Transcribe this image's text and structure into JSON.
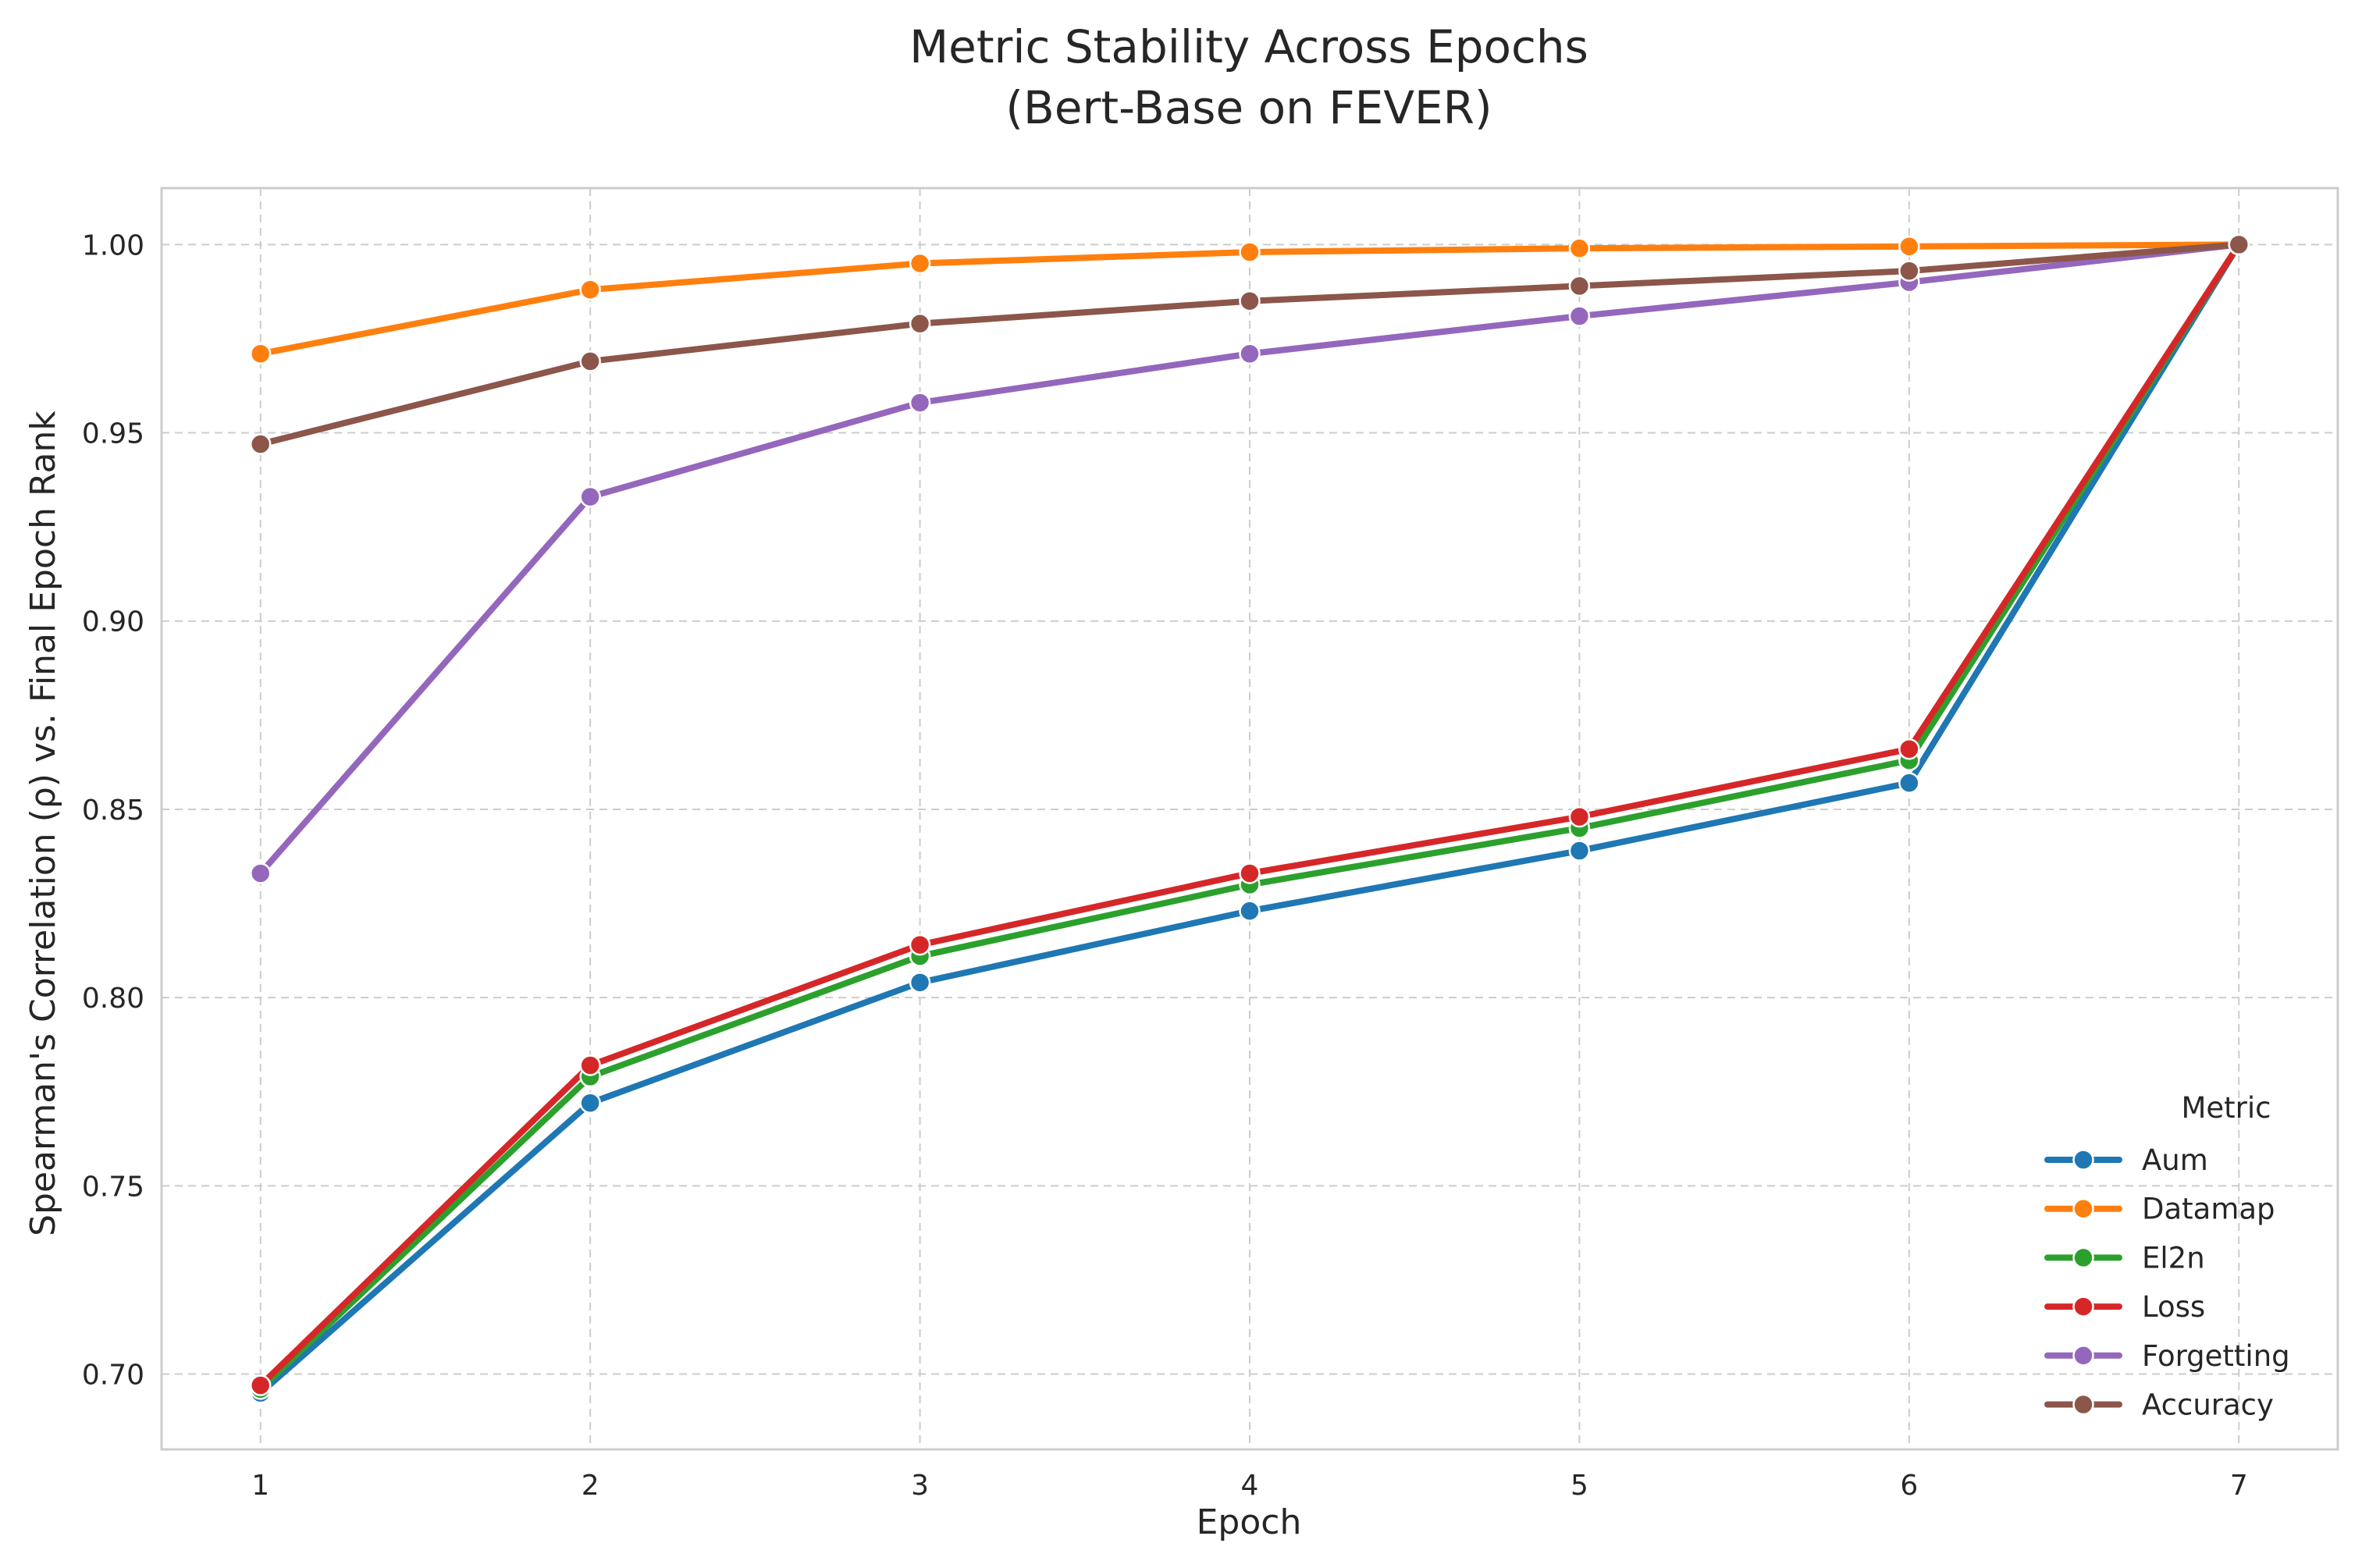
{
  "chart_data": {
    "type": "line",
    "title": "Metric Stability Across Epochs",
    "subtitle": "(Bert-Base on FEVER)",
    "xlabel": "Epoch",
    "ylabel": "Spearman's Correlation (ρ) vs. Final Epoch Rank",
    "x": [
      1,
      2,
      3,
      4,
      5,
      6,
      7
    ],
    "x_ticks": [
      "1",
      "2",
      "3",
      "4",
      "5",
      "6",
      "7"
    ],
    "xlim": [
      0.7,
      7.3
    ],
    "ylim": [
      0.68,
      1.015
    ],
    "y_ticks": [
      "0.70",
      "0.75",
      "0.80",
      "0.85",
      "0.90",
      "0.95",
      "1.00"
    ],
    "grid": true,
    "legend_title": "Metric",
    "legend_position": "lower-right",
    "series": [
      {
        "name": "Aum",
        "color": "#1f77b4",
        "values": [
          0.695,
          0.772,
          0.804,
          0.823,
          0.839,
          0.857,
          1.0
        ]
      },
      {
        "name": "Datamap",
        "color": "#ff7f0e",
        "values": [
          0.971,
          0.988,
          0.995,
          0.998,
          0.999,
          0.9995,
          1.0
        ]
      },
      {
        "name": "El2n",
        "color": "#2ca02c",
        "values": [
          0.696,
          0.779,
          0.811,
          0.83,
          0.845,
          0.863,
          1.0
        ]
      },
      {
        "name": "Loss",
        "color": "#d62728",
        "values": [
          0.697,
          0.782,
          0.814,
          0.833,
          0.848,
          0.866,
          1.0
        ]
      },
      {
        "name": "Forgetting",
        "color": "#9467bd",
        "values": [
          0.833,
          0.933,
          0.958,
          0.971,
          0.981,
          0.99,
          1.0
        ]
      },
      {
        "name": "Accuracy",
        "color": "#8c564b",
        "values": [
          0.947,
          0.969,
          0.979,
          0.985,
          0.989,
          0.993,
          1.0
        ]
      }
    ]
  }
}
